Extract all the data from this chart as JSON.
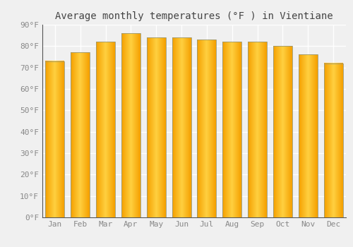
{
  "title": "Average monthly temperatures (°F ) in Vientiane",
  "months": [
    "Jan",
    "Feb",
    "Mar",
    "Apr",
    "May",
    "Jun",
    "Jul",
    "Aug",
    "Sep",
    "Oct",
    "Nov",
    "Dec"
  ],
  "values": [
    73,
    77,
    82,
    86,
    84,
    84,
    83,
    82,
    82,
    80,
    76,
    72
  ],
  "bar_color_center": "#FFD040",
  "bar_color_edge": "#F5A000",
  "bar_outline_color": "#999977",
  "ylim": [
    0,
    90
  ],
  "yticks": [
    0,
    10,
    20,
    30,
    40,
    50,
    60,
    70,
    80,
    90
  ],
  "ytick_labels": [
    "0°F",
    "10°F",
    "20°F",
    "30°F",
    "40°F",
    "50°F",
    "60°F",
    "70°F",
    "80°F",
    "90°F"
  ],
  "background_color": "#f0f0f0",
  "grid_color": "#ffffff",
  "title_fontsize": 10,
  "tick_fontsize": 8,
  "font_family": "monospace",
  "tick_color": "#888888"
}
